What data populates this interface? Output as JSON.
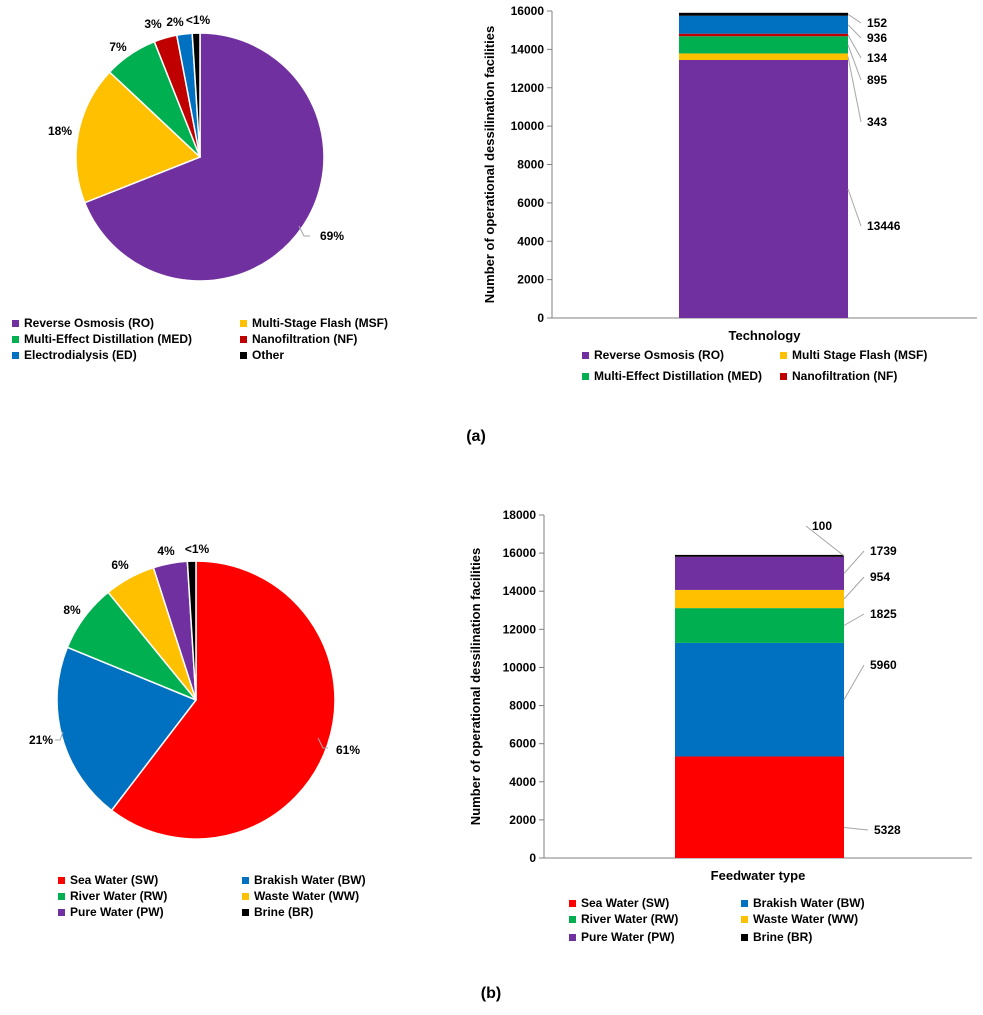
{
  "panel_labels": {
    "a": "(a)",
    "b": "(b)"
  },
  "chart_data": [
    {
      "id": "pie_a",
      "type": "pie",
      "slices": [
        {
          "name": "Reverse Osmosis (RO)",
          "value": 69,
          "label": "69%",
          "color": "#7030A0"
        },
        {
          "name": "Multi-Stage Flash (MSF)",
          "value": 18,
          "label": "18%",
          "color": "#FFC000"
        },
        {
          "name": "Multi-Effect Distillation (MED)",
          "value": 7,
          "label": "7%",
          "color": "#00B050"
        },
        {
          "name": "Nanofiltration (NF)",
          "value": 3,
          "label": "3%",
          "color": "#C00000"
        },
        {
          "name": "Electrodialysis (ED)",
          "value": 2,
          "label": "2%",
          "color": "#0070C0"
        },
        {
          "name": "Other",
          "value": 1,
          "label": "<1%",
          "color": "#000000"
        }
      ],
      "legend": [
        "Reverse Osmosis (RO)",
        "Multi-Stage Flash (MSF)",
        "Multi-Effect Distillation (MED)",
        "Nanofiltration (NF)",
        "Electrodialysis (ED)",
        "Other"
      ]
    },
    {
      "id": "bar_a",
      "type": "bar",
      "stacked": true,
      "categories": [
        "Technology"
      ],
      "xlabel": "Technology",
      "ylabel": "Number of operational dessilination facilities",
      "ylim": [
        0,
        16000
      ],
      "yticks": [
        "0",
        "2000",
        "4000",
        "6000",
        "8000",
        "10000",
        "12000",
        "14000",
        "16000"
      ],
      "series": [
        {
          "name": "Reverse Osmosis (RO)",
          "values": [
            13446
          ],
          "label": "13446",
          "color": "#7030A0"
        },
        {
          "name": "Multi Stage Flash (MSF)",
          "values": [
            343
          ],
          "label": "343",
          "color": "#FFC000"
        },
        {
          "name": "Multi-Effect Distillation (MED)",
          "values": [
            895
          ],
          "label": "895",
          "color": "#00B050"
        },
        {
          "name": "Nanofiltration (NF)",
          "values": [
            134
          ],
          "label": "134",
          "color": "#C00000"
        },
        {
          "values": [
            936
          ],
          "label": "936",
          "color": "#0070C0"
        },
        {
          "values": [
            152
          ],
          "label": "152",
          "color": "#000000"
        }
      ],
      "legend": [
        "Reverse Osmosis (RO)",
        "Multi Stage Flash (MSF)",
        "Multi-Effect Distillation (MED)",
        "Nanofiltration (NF)"
      ]
    },
    {
      "id": "pie_b",
      "type": "pie",
      "slices": [
        {
          "name": "Sea Water (SW)",
          "value": 61,
          "label": "61%",
          "color": "#FF0000"
        },
        {
          "name": "Brakish Water (BW)",
          "value": 21,
          "label": "21%",
          "color": "#0070C0"
        },
        {
          "name": "River Water (RW)",
          "value": 8,
          "label": "8%",
          "color": "#00B050"
        },
        {
          "name": "Waste Water (WW)",
          "value": 6,
          "label": "6%",
          "color": "#FFC000"
        },
        {
          "name": "Pure Water (PW)",
          "value": 4,
          "label": "4%",
          "color": "#7030A0"
        },
        {
          "name": "Brine (BR)",
          "value": 1,
          "label": "<1%",
          "color": "#000000"
        }
      ],
      "legend": [
        "Sea Water (SW)",
        "Brakish Water (BW)",
        "River Water (RW)",
        "Waste Water (WW)",
        "Pure Water (PW)",
        "Brine (BR)"
      ]
    },
    {
      "id": "bar_b",
      "type": "bar",
      "stacked": true,
      "categories": [
        "Feedwater type"
      ],
      "xlabel": "Feedwater type",
      "ylabel": "Number of operational dessilination facilities",
      "ylim": [
        0,
        18000
      ],
      "yticks": [
        "0",
        "2000",
        "4000",
        "6000",
        "8000",
        "10000",
        "12000",
        "14000",
        "16000",
        "18000"
      ],
      "series": [
        {
          "name": "Sea Water (SW)",
          "values": [
            5328
          ],
          "label": "5328",
          "color": "#FF0000"
        },
        {
          "name": "Brakish Water (BW)",
          "values": [
            5960
          ],
          "label": "5960",
          "color": "#0070C0"
        },
        {
          "name": "River Water (RW)",
          "values": [
            1825
          ],
          "label": "1825",
          "color": "#00B050"
        },
        {
          "name": "Waste Water (WW)",
          "values": [
            954
          ],
          "label": "954",
          "color": "#FFC000"
        },
        {
          "name": "Pure Water (PW)",
          "values": [
            1739
          ],
          "label": "1739",
          "color": "#7030A0"
        },
        {
          "name": "Brine (BR)",
          "values": [
            100
          ],
          "label": "100",
          "color": "#000000"
        }
      ],
      "legend": [
        "Sea Water (SW)",
        "Brakish Water (BW)",
        "River Water (RW)",
        "Waste Water (WW)",
        "Pure Water (PW)",
        "Brine (BR)"
      ]
    }
  ]
}
